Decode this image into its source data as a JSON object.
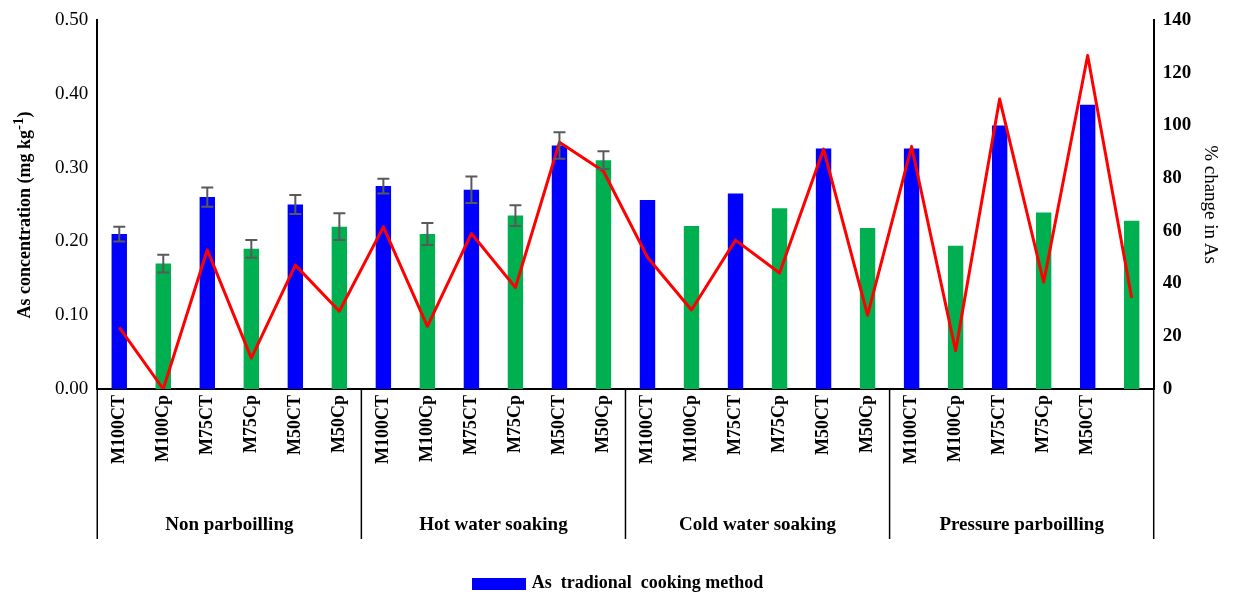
{
  "chart_data": {
    "type": "bar",
    "ylabel": "As concentration (mg kg$^{-1}$)",
    "y2label": "% change in As",
    "categories": [
      "M100CT",
      "M100Cp",
      "M75CT",
      "M75Cp",
      "M50CT",
      "M50Cp",
      "M100CT",
      "M100Cp",
      "M75CT",
      "M75Cp",
      "M50CT",
      "M50Cp",
      "M100CT",
      "M100Cp",
      "M75CT",
      "M75Cp",
      "M50CT",
      "M50Cp",
      "M100CT",
      "M100Cp",
      "M75CT",
      "M75Cp",
      "M50CT",
      null
    ],
    "annotations": [
      "Non parboilling",
      "Hot water soaking",
      "Cold water soaking",
      "Pressure parboilling"
    ],
    "series": [
      {
        "name": "As  tradional  cooking method",
        "color": "#0000ff",
        "values": [
          0.21,
          null,
          0.26,
          null,
          0.25,
          null,
          0.275,
          null,
          0.27,
          null,
          0.33,
          null,
          0.256,
          null,
          0.265,
          null,
          0.326,
          null,
          0.326,
          null,
          0.357,
          null,
          0.385,
          null
        ],
        "errors": [
          0.01,
          null,
          0.013,
          null,
          0.013,
          null,
          0.01,
          null,
          0.018,
          null,
          0.018,
          null,
          null,
          null,
          null,
          null,
          null,
          null,
          null,
          null,
          null,
          null,
          null,
          null
        ]
      },
      {
        "color": "#00b050",
        "values": [
          null,
          0.17,
          null,
          0.19,
          null,
          0.22,
          null,
          0.21,
          null,
          0.235,
          null,
          0.31,
          null,
          0.221,
          null,
          0.245,
          null,
          0.218,
          null,
          0.194,
          null,
          0.239,
          null,
          0.228
        ],
        "errors": [
          null,
          0.012,
          null,
          0.012,
          null,
          0.018,
          null,
          0.015,
          null,
          0.014,
          null,
          0.012,
          null,
          null,
          null,
          null,
          null,
          null,
          null,
          null,
          null,
          null,
          null,
          null
        ]
      },
      {
        "type": "line",
        "axis": "y2",
        "color": "#ff0000",
        "values": [
          23.4,
          0,
          52.8,
          11.7,
          47,
          29.5,
          61.5,
          23.8,
          59,
          38.5,
          93.6,
          82.6,
          50,
          30,
          56.5,
          44,
          91,
          28,
          92,
          14.5,
          110,
          40.5,
          126.5,
          34.5
        ]
      }
    ],
    "ylim": [
      0,
      0.5
    ],
    "yticks": [
      {
        "value": 0,
        "label": "0.00"
      },
      {
        "value": 0.1,
        "label": "0.10"
      },
      {
        "value": 0.2,
        "label": "0.20"
      },
      {
        "value": 0.3,
        "label": "0.30"
      },
      {
        "value": 0.4,
        "label": "0.40"
      },
      {
        "value": 0.5,
        "label": "0.50"
      }
    ],
    "y2lim": [
      0,
      140
    ],
    "y2ticks": [
      0,
      20,
      40,
      60,
      80,
      100,
      120,
      140
    ],
    "grid": false,
    "legend": "bottom",
    "line_style": "solid"
  }
}
